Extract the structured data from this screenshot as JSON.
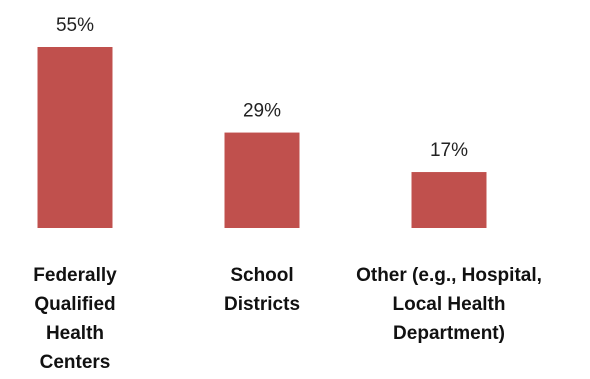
{
  "chart_data": {
    "type": "bar",
    "categories": [
      [
        "Federally",
        "Qualified",
        "Health",
        "Centers"
      ],
      [
        "School",
        "Districts"
      ],
      [
        "Other (e.g., Hospital,",
        "Local Health",
        "Department)"
      ]
    ],
    "values": [
      55,
      29,
      17
    ],
    "value_labels": [
      "55%",
      "29%",
      "17%"
    ],
    "value_unit": "%",
    "ylim": [
      0,
      55
    ],
    "grid": false,
    "legend": "none",
    "bar_color": "#c0504d"
  }
}
